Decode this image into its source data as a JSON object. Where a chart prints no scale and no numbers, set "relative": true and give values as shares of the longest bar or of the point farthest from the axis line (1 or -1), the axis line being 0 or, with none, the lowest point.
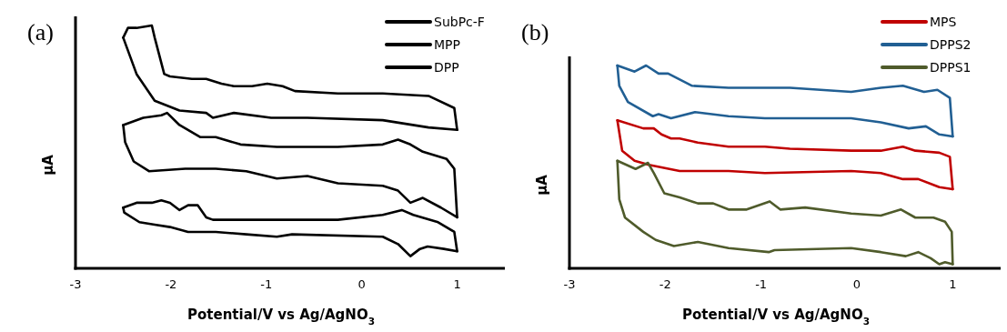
{
  "chart_data": [
    {
      "type": "line",
      "title": "(a)",
      "xlabel": "Potential/V vs Ag/AgNO$_{3}$",
      "ylabel": "μA",
      "relative": true,
      "xlim": [
        -3,
        1.5
      ],
      "xticks": [
        -3,
        -2,
        -1,
        0,
        1
      ],
      "legend": "top right",
      "grid": false,
      "series": [
        {
          "name": "SubPc-F",
          "color": "#000000",
          "x": [
            -2.5,
            -2.45,
            -2.36,
            -2.2,
            -2.17,
            -2.07,
            -2.01,
            -1.78,
            -1.63,
            -1.47,
            -1.34,
            -1.15,
            -0.99,
            -0.83,
            -0.7,
            -0.25,
            0.22,
            0.7,
            0.97,
            1.0
          ],
          "values": [
            0.95,
            0.99,
            0.99,
            1.0,
            0.95,
            0.8,
            0.79,
            0.78,
            0.78,
            0.76,
            0.75,
            0.75,
            0.76,
            0.75,
            0.73,
            0.72,
            0.72,
            0.71,
            0.66,
            0.57
          ]
        },
        {
          "color": "#000000",
          "x": [
            1.0,
            0.7,
            0.22,
            -0.57,
            -0.95,
            -1.34,
            -1.56,
            -1.63,
            -1.91,
            -2.17,
            -2.36,
            -2.5
          ],
          "values": [
            0.57,
            0.58,
            0.61,
            0.62,
            0.62,
            0.64,
            0.62,
            0.64,
            0.65,
            0.69,
            0.8,
            0.95
          ]
        },
        {
          "name": "MPP",
          "color": "#000000",
          "x": [
            -2.5,
            -2.29,
            -2.1,
            -2.04,
            -1.91,
            -1.69,
            -1.53,
            -1.27,
            -0.89,
            -0.25,
            0.22,
            0.38,
            0.51,
            0.64,
            0.89,
            0.97,
            1.0
          ],
          "values": [
            0.59,
            0.62,
            0.63,
            0.64,
            0.59,
            0.54,
            0.54,
            0.51,
            0.5,
            0.5,
            0.51,
            0.53,
            0.51,
            0.48,
            0.45,
            0.41,
            0.21
          ]
        },
        {
          "color": "#000000",
          "x": [
            1.0,
            0.83,
            0.64,
            0.51,
            0.38,
            0.22,
            -0.25,
            -0.57,
            -0.89,
            -1.21,
            -1.53,
            -1.85,
            -2.23,
            -2.39,
            -2.48,
            -2.5
          ],
          "values": [
            0.21,
            0.25,
            0.29,
            0.27,
            0.32,
            0.34,
            0.35,
            0.38,
            0.37,
            0.4,
            0.41,
            0.41,
            0.4,
            0.44,
            0.52,
            0.59
          ]
        },
        {
          "name": "DPP",
          "color": "#000000",
          "x": [
            -2.5,
            -2.36,
            -2.2,
            -2.1,
            -2.01,
            -1.91,
            -1.82,
            -1.72,
            -1.63,
            -1.56,
            -0.89,
            -0.25,
            0.22,
            0.42,
            0.54,
            0.8,
            0.97,
            1.0
          ],
          "values": [
            0.25,
            0.27,
            0.27,
            0.28,
            0.27,
            0.24,
            0.26,
            0.26,
            0.21,
            0.2,
            0.2,
            0.2,
            0.22,
            0.24,
            0.22,
            0.19,
            0.15,
            0.07
          ]
        },
        {
          "color": "#000000",
          "x": [
            1.0,
            0.86,
            0.69,
            0.61,
            0.51,
            0.38,
            0.22,
            -0.73,
            -0.89,
            -1.21,
            -1.53,
            -1.82,
            -2.01,
            -2.17,
            -2.33,
            -2.49,
            -2.5
          ],
          "values": [
            0.07,
            0.08,
            0.09,
            0.08,
            0.05,
            0.1,
            0.13,
            0.14,
            0.13,
            0.14,
            0.15,
            0.15,
            0.17,
            0.18,
            0.19,
            0.23,
            0.25
          ]
        }
      ]
    },
    {
      "type": "line",
      "title": "(b)",
      "xlabel": "Potential/V vs Ag/AgNO$_{3}$",
      "ylabel": "μA",
      "relative": true,
      "xlim": [
        -3,
        1.5
      ],
      "xticks": [
        -3,
        -2,
        -1,
        0,
        1
      ],
      "legend": "top right",
      "grid": false,
      "series": [
        {
          "name": "MPS",
          "color": "#c00000",
          "x": [
            -2.5,
            -2.23,
            -2.12,
            -2.04,
            -1.94,
            -1.85,
            -1.66,
            -1.34,
            -0.96,
            -0.7,
            -0.06,
            0.25,
            0.48,
            0.61,
            0.86,
            0.97,
            1.0
          ],
          "values": [
            0.73,
            0.69,
            0.69,
            0.66,
            0.64,
            0.64,
            0.62,
            0.6,
            0.6,
            0.59,
            0.58,
            0.58,
            0.6,
            0.58,
            0.57,
            0.55,
            0.39
          ]
        },
        {
          "color": "#c00000",
          "x": [
            1.0,
            0.86,
            0.64,
            0.48,
            0.25,
            -0.06,
            -0.96,
            -1.34,
            -1.85,
            -2.17,
            -2.32,
            -2.45,
            -2.5
          ],
          "values": [
            0.39,
            0.4,
            0.44,
            0.44,
            0.47,
            0.48,
            0.47,
            0.48,
            0.48,
            0.51,
            0.53,
            0.58,
            0.73
          ]
        },
        {
          "name": "DPPS2",
          "color": "#215f93",
          "x": [
            -2.5,
            -2.32,
            -2.2,
            -2.07,
            -1.97,
            -1.72,
            -1.34,
            -0.7,
            -0.06,
            0.25,
            0.48,
            0.7,
            0.84,
            0.97,
            1.0
          ],
          "values": [
            1.0,
            0.97,
            1.0,
            0.96,
            0.96,
            0.9,
            0.89,
            0.89,
            0.87,
            0.89,
            0.9,
            0.87,
            0.88,
            0.84,
            0.65
          ]
        },
        {
          "color": "#215f93",
          "x": [
            1.0,
            0.86,
            0.72,
            0.54,
            0.25,
            -0.06,
            -0.96,
            -1.34,
            -1.69,
            -1.94,
            -2.07,
            -2.13,
            -2.39,
            -2.48,
            -2.5
          ],
          "values": [
            0.65,
            0.66,
            0.7,
            0.69,
            0.72,
            0.74,
            0.74,
            0.75,
            0.77,
            0.74,
            0.76,
            0.75,
            0.82,
            0.9,
            1.0
          ]
        },
        {
          "name": "DPPS1",
          "color": "#4f5b2b",
          "x": [
            -2.5,
            -2.31,
            -2.18,
            -2.12,
            -2.01,
            -1.85,
            -1.66,
            -1.5,
            -1.34,
            -1.15,
            -0.91,
            -0.8,
            -0.54,
            -0.06,
            0.25,
            0.46,
            0.61,
            0.8,
            0.92,
            0.99,
            1.0
          ],
          "values": [
            0.53,
            0.49,
            0.52,
            0.47,
            0.37,
            0.35,
            0.32,
            0.32,
            0.29,
            0.29,
            0.33,
            0.29,
            0.3,
            0.27,
            0.26,
            0.29,
            0.25,
            0.25,
            0.23,
            0.18,
            0.02
          ]
        },
        {
          "color": "#4f5b2b",
          "x": [
            1.0,
            0.92,
            0.86,
            0.77,
            0.64,
            0.51,
            0.25,
            -0.06,
            -0.86,
            -0.92,
            -1.34,
            -1.66,
            -1.91,
            -2.1,
            -2.23,
            -2.42,
            -2.48,
            -2.5
          ],
          "values": [
            0.02,
            0.03,
            0.02,
            0.05,
            0.08,
            0.06,
            0.08,
            0.1,
            0.09,
            0.08,
            0.1,
            0.13,
            0.11,
            0.14,
            0.18,
            0.25,
            0.34,
            0.53
          ]
        }
      ]
    }
  ]
}
